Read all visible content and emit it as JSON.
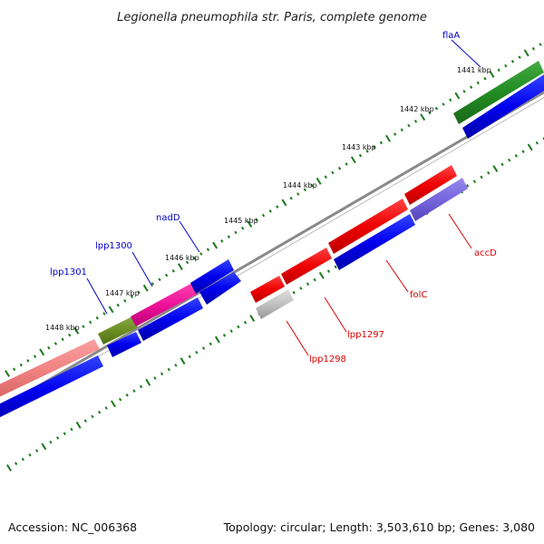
{
  "title": "Legionella pneumophila str. Paris, complete genome",
  "footer": {
    "accession": "Accession: NC_006368",
    "summary": "Topology: circular; Length: 3,503,610 bp; Genes: 3,080"
  },
  "scale": {
    "unit": "kbp",
    "ticks": [
      {
        "label": "1441 kbp",
        "kbp": 1441
      },
      {
        "label": "1442 kbp",
        "kbp": 1442
      },
      {
        "label": "1443 kbp",
        "kbp": 1443
      },
      {
        "label": "1444 kbp",
        "kbp": 1444
      },
      {
        "label": "1445 kbp",
        "kbp": 1445
      },
      {
        "label": "1446 kbp",
        "kbp": 1446
      },
      {
        "label": "1447 kbp",
        "kbp": 1447
      },
      {
        "label": "1448 kbp",
        "kbp": 1448
      }
    ]
  },
  "genes": [
    {
      "name": "flaA",
      "strand": "forward"
    },
    {
      "name": "nadD",
      "strand": "forward"
    },
    {
      "name": "lpp1300",
      "strand": "forward"
    },
    {
      "name": "lpp1301",
      "strand": "forward"
    },
    {
      "name": "accD",
      "strand": "reverse"
    },
    {
      "name": "folC",
      "strand": "reverse"
    },
    {
      "name": "lpp1297",
      "strand": "reverse"
    },
    {
      "name": "lpp1298",
      "strand": "reverse"
    }
  ],
  "colors": {
    "forward_label": "#0000cc",
    "reverse_label": "#dd0000",
    "backbone": "#808080",
    "tick": "#1a7a1a",
    "cds": "#0000ee",
    "red_feature": "#ee0000",
    "green_feature": "#228b22",
    "olive_feature": "#6b8e23",
    "pink_feature": "#f08080",
    "magenta_feature": "#ee1199",
    "purple_feature": "#7766dd",
    "grey_feature": "#c0c0c0"
  }
}
